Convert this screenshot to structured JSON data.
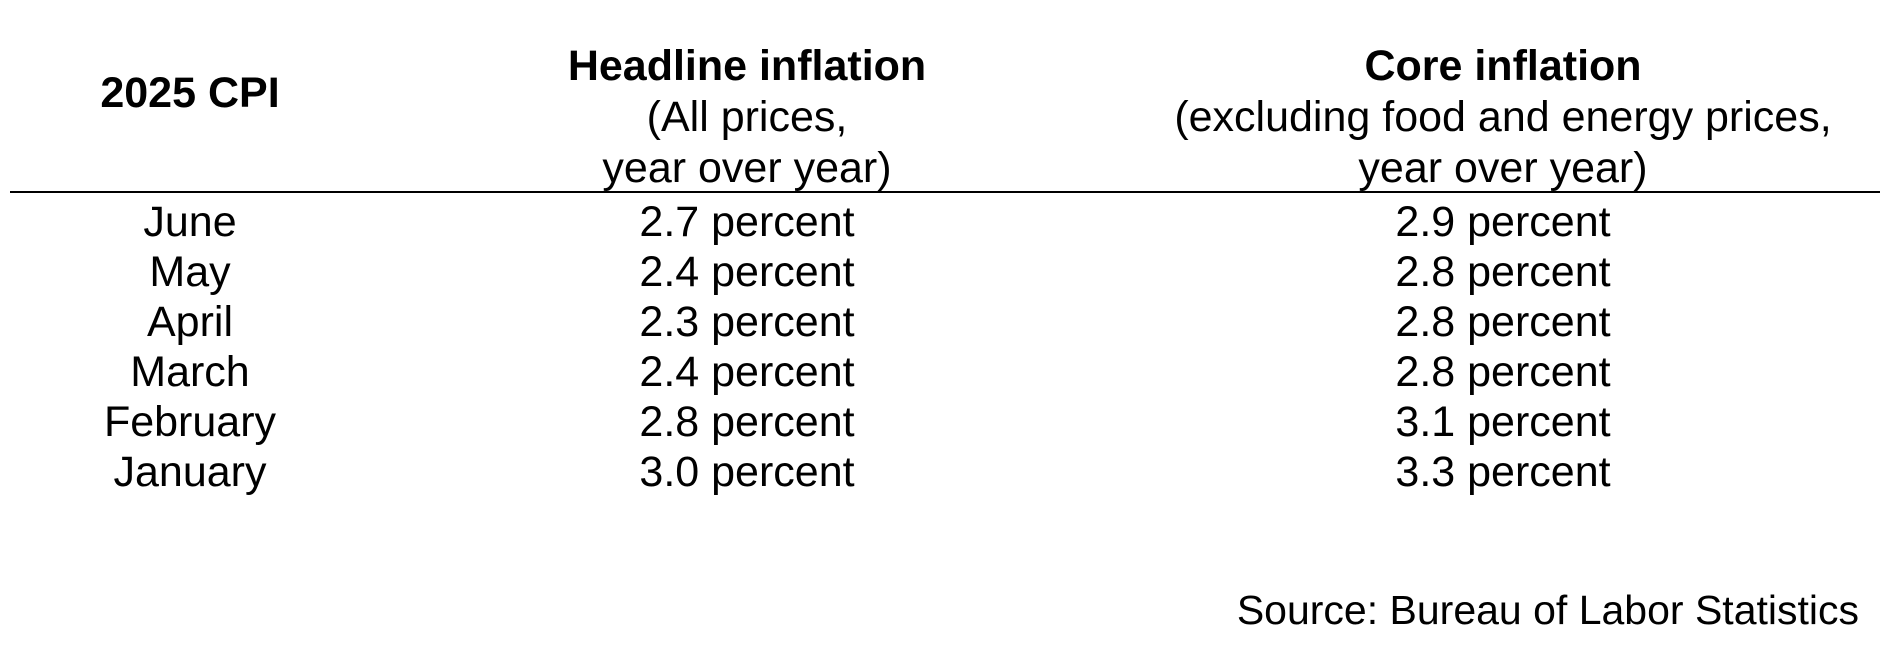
{
  "table": {
    "headers": [
      {
        "title": "2025 CPI",
        "subtitle": []
      },
      {
        "title": "Headline inflation",
        "subtitle": [
          "(All prices,",
          "year over year)"
        ]
      },
      {
        "title": "Core inflation",
        "subtitle": [
          "(excluding food and energy prices,",
          "year over year)"
        ]
      }
    ],
    "rows": [
      {
        "month": "June",
        "headline": "2.7 percent",
        "core": "2.9 percent"
      },
      {
        "month": "May",
        "headline": "2.4 percent",
        "core": "2.8 percent"
      },
      {
        "month": "April",
        "headline": "2.3 percent",
        "core": "2.8 percent"
      },
      {
        "month": "March",
        "headline": "2.4 percent",
        "core": "2.8 percent"
      },
      {
        "month": "February",
        "headline": "2.8 percent",
        "core": "3.1 percent"
      },
      {
        "month": "January",
        "headline": "3.0 percent",
        "core": "3.3 percent"
      }
    ]
  },
  "source": "Source: Bureau of Labor Statistics"
}
